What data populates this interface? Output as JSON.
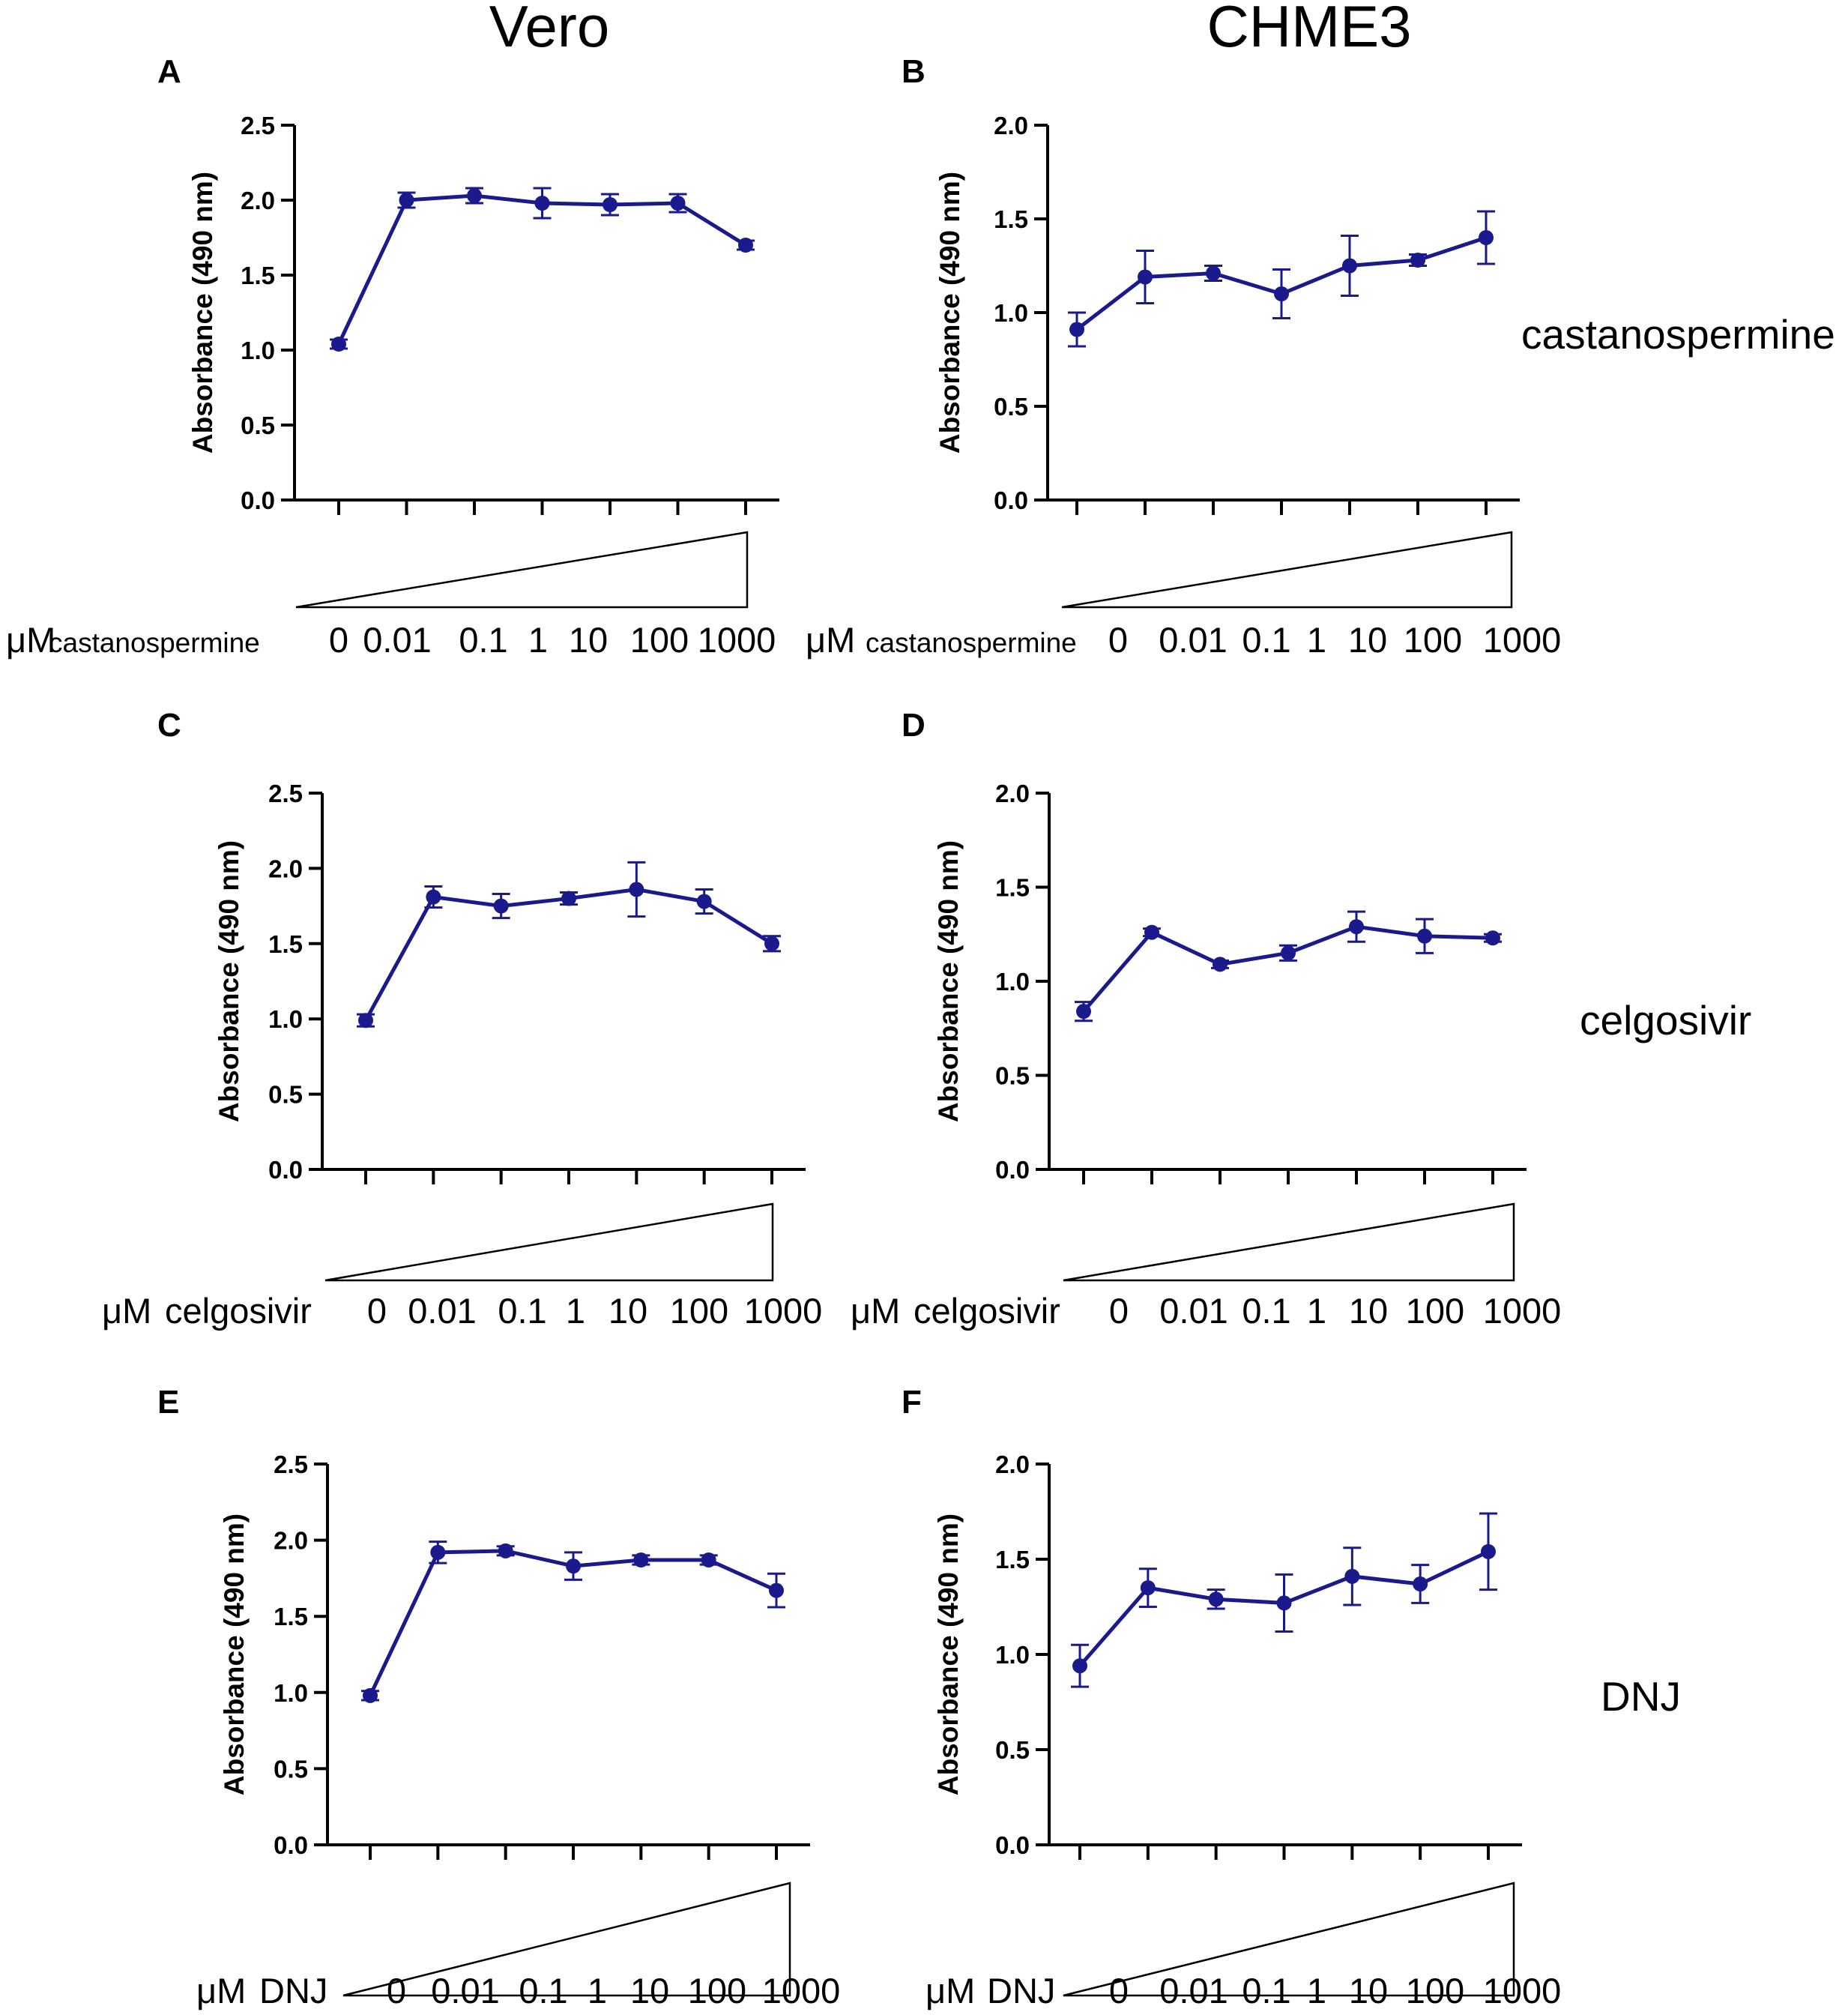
{
  "figure": {
    "column_titles": [
      "Vero",
      "CHME3"
    ],
    "row_labels": [
      "castanospermine",
      "celgosivir",
      "DNJ"
    ],
    "series_color": "#1a1a8c",
    "unit_prefix": "μM"
  },
  "chart_data": [
    {
      "panel": "A",
      "type": "line",
      "cell": "Vero",
      "drug": "castanospermine",
      "unit_prefix": "μM",
      "drug_label": "castanospermine",
      "ylabel": "Absorbance (490 nm)",
      "ylim": [
        0,
        2.5
      ],
      "yticks": [
        "0.0",
        "0.5",
        "1.0",
        "1.5",
        "2.0",
        "2.5"
      ],
      "categories": [
        "0",
        "0.01",
        "0.1",
        "1",
        "10",
        "100",
        "1000"
      ],
      "values": [
        1.04,
        2.0,
        2.03,
        1.98,
        1.97,
        1.98,
        1.7
      ],
      "errors": [
        0.03,
        0.05,
        0.05,
        0.1,
        0.07,
        0.06,
        0.03
      ]
    },
    {
      "panel": "B",
      "type": "line",
      "cell": "CHME3",
      "drug": "castanospermine",
      "unit_prefix": "μM",
      "drug_label": "castanospermine",
      "ylabel": "Absorbance (490 nm)",
      "ylim": [
        0,
        2.0
      ],
      "yticks": [
        "0.0",
        "0.5",
        "1.0",
        "1.5",
        "2.0"
      ],
      "categories": [
        "0",
        "0.01",
        "0.1",
        "1",
        "10",
        "100",
        "1000"
      ],
      "values": [
        0.91,
        1.19,
        1.21,
        1.1,
        1.25,
        1.28,
        1.4
      ],
      "errors": [
        0.09,
        0.14,
        0.04,
        0.13,
        0.16,
        0.03,
        0.14
      ]
    },
    {
      "panel": "C",
      "type": "line",
      "cell": "Vero",
      "drug": "celgosivir",
      "unit_prefix": "μM",
      "drug_label": "celgosivir",
      "ylabel": "Absorbance (490 nm)",
      "ylim": [
        0,
        2.5
      ],
      "yticks": [
        "0.0",
        "0.5",
        "1.0",
        "1.5",
        "2.0",
        "2.5"
      ],
      "categories": [
        "0",
        "0.01",
        "0.1",
        "1",
        "10",
        "100",
        "1000"
      ],
      "values": [
        0.99,
        1.81,
        1.75,
        1.8,
        1.86,
        1.78,
        1.5
      ],
      "errors": [
        0.04,
        0.07,
        0.08,
        0.04,
        0.18,
        0.08,
        0.05
      ]
    },
    {
      "panel": "D",
      "type": "line",
      "cell": "CHME3",
      "drug": "celgosivir",
      "unit_prefix": "μM",
      "drug_label": "celgosivir",
      "ylabel": "Absorbance (490 nm)",
      "ylim": [
        0,
        2.0
      ],
      "yticks": [
        "0.0",
        "0.5",
        "1.0",
        "1.5",
        "2.0"
      ],
      "categories": [
        "0",
        "0.01",
        "0.1",
        "1",
        "10",
        "100",
        "1000"
      ],
      "values": [
        0.84,
        1.26,
        1.09,
        1.15,
        1.29,
        1.24,
        1.23
      ],
      "errors": [
        0.05,
        0.02,
        0.02,
        0.04,
        0.08,
        0.09,
        0.02
      ]
    },
    {
      "panel": "E",
      "type": "line",
      "cell": "Vero",
      "drug": "DNJ",
      "unit_prefix": "μM",
      "drug_label": "DNJ",
      "ylabel": "Absorbance (490 nm)",
      "ylim": [
        0,
        2.5
      ],
      "yticks": [
        "0.0",
        "0.5",
        "1.0",
        "1.5",
        "2.0",
        "2.5"
      ],
      "categories": [
        "0",
        "0.01",
        "0.1",
        "1",
        "10",
        "100",
        "1000"
      ],
      "values": [
        0.98,
        1.92,
        1.93,
        1.83,
        1.87,
        1.87,
        1.67
      ],
      "errors": [
        0.03,
        0.07,
        0.03,
        0.09,
        0.03,
        0.03,
        0.11
      ]
    },
    {
      "panel": "F",
      "type": "line",
      "cell": "CHME3",
      "drug": "DNJ",
      "unit_prefix": "μM",
      "drug_label": "DNJ",
      "ylabel": "Absorbance (490 nm)",
      "ylim": [
        0,
        2.0
      ],
      "yticks": [
        "0.0",
        "0.5",
        "1.0",
        "1.5",
        "2.0"
      ],
      "categories": [
        "0",
        "0.01",
        "0.1",
        "1",
        "10",
        "100",
        "1000"
      ],
      "values": [
        0.94,
        1.35,
        1.29,
        1.27,
        1.41,
        1.37,
        1.54
      ],
      "errors": [
        0.11,
        0.1,
        0.05,
        0.15,
        0.15,
        0.1,
        0.2
      ]
    }
  ]
}
